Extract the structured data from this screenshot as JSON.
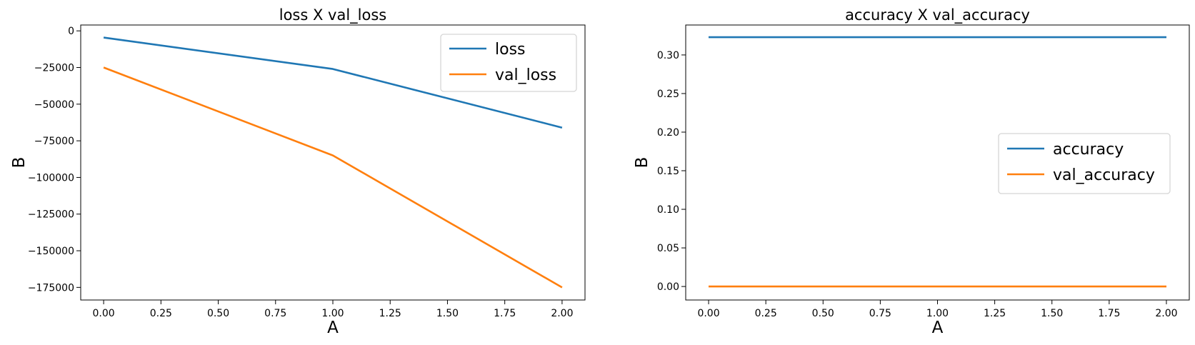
{
  "figure": {
    "background": "#ffffff"
  },
  "colors": {
    "blue": "#1f77b4",
    "orange": "#ff7f0e",
    "spine": "#000000",
    "legend_border": "#d5d5d5",
    "legend_fill": "#ffffff"
  },
  "chart_data": [
    {
      "type": "line",
      "title": "loss X val_loss",
      "xlabel": "A",
      "ylabel": "B",
      "xlim": [
        -0.1,
        2.1
      ],
      "ylim": [
        -183600,
        4000
      ],
      "grid": false,
      "legend": {
        "loc": "upper right",
        "entries": [
          "loss",
          "val_loss"
        ]
      },
      "x_ticks": [
        {
          "v": 0.0,
          "label": "0.00"
        },
        {
          "v": 0.25,
          "label": "0.25"
        },
        {
          "v": 0.5,
          "label": "0.50"
        },
        {
          "v": 0.75,
          "label": "0.75"
        },
        {
          "v": 1.0,
          "label": "1.00"
        },
        {
          "v": 1.25,
          "label": "1.25"
        },
        {
          "v": 1.5,
          "label": "1.50"
        },
        {
          "v": 1.75,
          "label": "1.75"
        },
        {
          "v": 2.0,
          "label": "2.00"
        }
      ],
      "y_ticks": [
        {
          "v": 0,
          "label": "0"
        },
        {
          "v": -25000,
          "label": "−25000"
        },
        {
          "v": -50000,
          "label": "−50000"
        },
        {
          "v": -75000,
          "label": "−75000"
        },
        {
          "v": -100000,
          "label": "−100000"
        },
        {
          "v": -125000,
          "label": "−125000"
        },
        {
          "v": -150000,
          "label": "−150000"
        },
        {
          "v": -175000,
          "label": "−175000"
        }
      ],
      "series": [
        {
          "name": "loss",
          "color": "#1f77b4",
          "x": [
            0,
            1,
            2
          ],
          "y": [
            -4600,
            -26000,
            -66000
          ]
        },
        {
          "name": "val_loss",
          "color": "#ff7f0e",
          "x": [
            0,
            1,
            2
          ],
          "y": [
            -25000,
            -85000,
            -175000
          ]
        }
      ]
    },
    {
      "type": "line",
      "title": "accuracy X val_accuracy",
      "xlabel": "A",
      "ylabel": "B",
      "xlim": [
        -0.1,
        2.1
      ],
      "ylim": [
        -0.0175,
        0.3388
      ],
      "grid": false,
      "legend": {
        "loc": "center right",
        "entries": [
          "accuracy",
          "val_accuracy"
        ]
      },
      "x_ticks": [
        {
          "v": 0.0,
          "label": "0.00"
        },
        {
          "v": 0.25,
          "label": "0.25"
        },
        {
          "v": 0.5,
          "label": "0.50"
        },
        {
          "v": 0.75,
          "label": "0.75"
        },
        {
          "v": 1.0,
          "label": "1.00"
        },
        {
          "v": 1.25,
          "label": "1.25"
        },
        {
          "v": 1.5,
          "label": "1.50"
        },
        {
          "v": 1.75,
          "label": "1.75"
        },
        {
          "v": 2.0,
          "label": "2.00"
        }
      ],
      "y_ticks": [
        {
          "v": 0.0,
          "label": "0.00"
        },
        {
          "v": 0.05,
          "label": "0.05"
        },
        {
          "v": 0.1,
          "label": "0.10"
        },
        {
          "v": 0.15,
          "label": "0.15"
        },
        {
          "v": 0.2,
          "label": "0.20"
        },
        {
          "v": 0.25,
          "label": "0.25"
        },
        {
          "v": 0.3,
          "label": "0.30"
        }
      ],
      "series": [
        {
          "name": "accuracy",
          "color": "#1f77b4",
          "x": [
            0,
            1,
            2
          ],
          "y": [
            0.323,
            0.323,
            0.323
          ]
        },
        {
          "name": "val_accuracy",
          "color": "#ff7f0e",
          "x": [
            0,
            1,
            2
          ],
          "y": [
            0.0,
            0.0,
            0.0
          ]
        }
      ]
    }
  ]
}
